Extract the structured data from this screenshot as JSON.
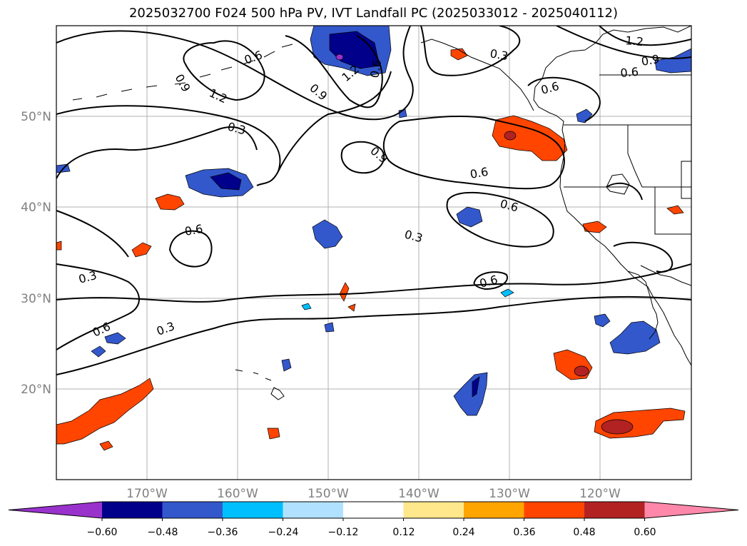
{
  "title": "2025032700 F024 500 hPa PV, IVT Landfall PC (2025033012 - 2025040112)",
  "map": {
    "lon_ticks": [
      "170°W",
      "160°W",
      "150°W",
      "140°W",
      "130°W",
      "120°W"
    ],
    "lat_ticks": [
      "50°N",
      "40°N",
      "30°N",
      "20°N"
    ],
    "contour_levels": [
      "0.3",
      "0.6",
      "0.9",
      "1.2"
    ],
    "contour_labels": [
      "0.9",
      "0.6",
      "1.2",
      "0.9",
      "1.2",
      "0.6",
      "0.3",
      "0.9",
      "0.6",
      "1.2",
      "0.9",
      "0.6",
      "0.3",
      "0.6",
      "0.6",
      "0.3",
      "0.6",
      "0.3",
      "0.6",
      "0.6",
      "0.3"
    ]
  },
  "colorbar": {
    "ticks": [
      "−0.60",
      "−0.48",
      "−0.36",
      "−0.24",
      "−0.12",
      "0.12",
      "0.24",
      "0.36",
      "0.48",
      "0.60"
    ],
    "colors": [
      "#9932cc",
      "#00008b",
      "#3358cc",
      "#00bfff",
      "#b0e2ff",
      "#ffffff",
      "#ffe78c",
      "#ffa500",
      "#ff4500",
      "#b22222",
      "#ff88aa"
    ]
  }
}
